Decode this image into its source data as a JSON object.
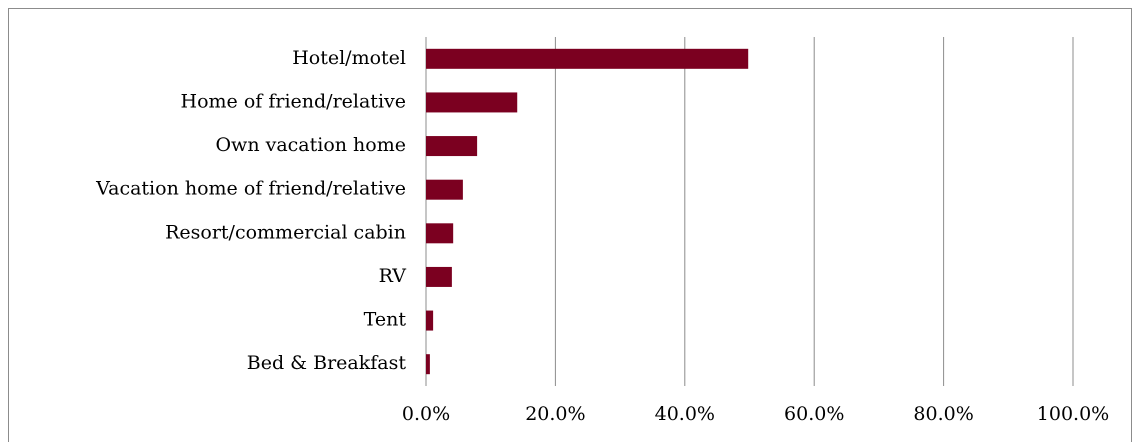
{
  "chart_data": {
    "type": "bar",
    "orientation": "horizontal",
    "categories": [
      "Hotel/motel",
      "Home of friend/relative",
      "Own vacation home",
      "Vacation home of friend/relative",
      "Resort/commercial cabin",
      "RV",
      "Tent",
      "Bed & Breakfast"
    ],
    "values": [
      49.8,
      14.1,
      7.9,
      5.7,
      4.2,
      4.0,
      1.1,
      0.6
    ],
    "color": "#7b0020",
    "xlim": [
      0,
      100
    ],
    "xticks": [
      {
        "value": 0,
        "label": "0.0%"
      },
      {
        "value": 20,
        "label": "20.0%"
      },
      {
        "value": 40,
        "label": "40.0%"
      },
      {
        "value": 60,
        "label": "60.0%"
      },
      {
        "value": 80,
        "label": "80.0%"
      },
      {
        "value": 100,
        "label": "100.0%"
      }
    ],
    "grid": true
  }
}
